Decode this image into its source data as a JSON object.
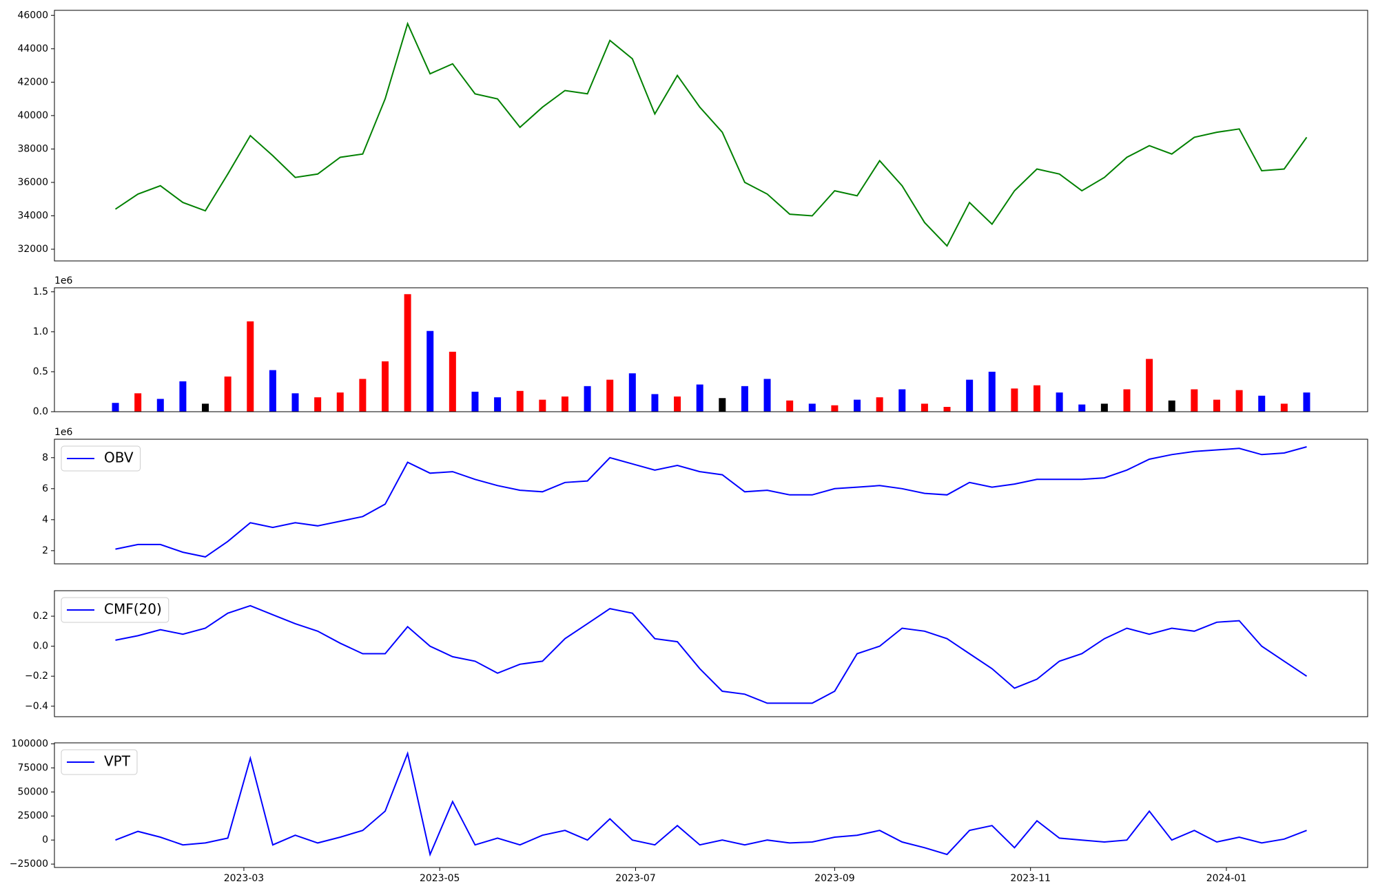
{
  "chart_data": [
    {
      "type": "line",
      "x": [
        "2023-01-20",
        "2023-01-27",
        "2023-02-03",
        "2023-02-10",
        "2023-02-17",
        "2023-02-24",
        "2023-03-03",
        "2023-03-10",
        "2023-03-17",
        "2023-03-24",
        "2023-03-31",
        "2023-04-07",
        "2023-04-14",
        "2023-04-21",
        "2023-04-28",
        "2023-05-05",
        "2023-05-12",
        "2023-05-19",
        "2023-05-26",
        "2023-06-02",
        "2023-06-09",
        "2023-06-16",
        "2023-06-23",
        "2023-06-30",
        "2023-07-07",
        "2023-07-14",
        "2023-07-21",
        "2023-07-28",
        "2023-08-04",
        "2023-08-11",
        "2023-08-18",
        "2023-08-25",
        "2023-09-01",
        "2023-09-08",
        "2023-09-15",
        "2023-09-22",
        "2023-09-29",
        "2023-10-06",
        "2023-10-13",
        "2023-10-20",
        "2023-10-27",
        "2023-11-03",
        "2023-11-10",
        "2023-11-17",
        "2023-11-24",
        "2023-12-01",
        "2023-12-08",
        "2023-12-15",
        "2023-12-22",
        "2023-12-29",
        "2024-01-05",
        "2024-01-12",
        "2024-01-19",
        "2024-01-26"
      ],
      "series": [
        {
          "color": "#008000",
          "values": [
            34400,
            35300,
            35800,
            34800,
            34300,
            36500,
            38800,
            37600,
            36300,
            36500,
            37500,
            37700,
            41000,
            45500,
            42500,
            43100,
            41300,
            41000,
            39300,
            40500,
            41500,
            41300,
            44500,
            43400,
            40100,
            42400,
            40500,
            39000,
            36000,
            35300,
            34100,
            34000,
            35500,
            35200,
            37300,
            35800,
            33600,
            32200,
            34800,
            33500,
            35500,
            36800,
            36500,
            35500,
            36300,
            37500,
            38200,
            37700,
            38700,
            39000,
            39200,
            36700,
            36800,
            38700
          ]
        }
      ],
      "xlim": [
        "2023-01-01",
        "2024-02-14"
      ],
      "ylim": [
        31300,
        46300
      ],
      "yticks": [
        32000,
        34000,
        36000,
        38000,
        40000,
        42000,
        44000,
        46000
      ]
    },
    {
      "type": "bar",
      "x": [
        "2023-01-20",
        "2023-01-27",
        "2023-02-03",
        "2023-02-10",
        "2023-02-17",
        "2023-02-24",
        "2023-03-03",
        "2023-03-10",
        "2023-03-17",
        "2023-03-24",
        "2023-03-31",
        "2023-04-07",
        "2023-04-14",
        "2023-04-21",
        "2023-04-28",
        "2023-05-05",
        "2023-05-12",
        "2023-05-19",
        "2023-05-26",
        "2023-06-02",
        "2023-06-09",
        "2023-06-16",
        "2023-06-23",
        "2023-06-30",
        "2023-07-07",
        "2023-07-14",
        "2023-07-21",
        "2023-07-28",
        "2023-08-04",
        "2023-08-11",
        "2023-08-18",
        "2023-08-25",
        "2023-09-01",
        "2023-09-08",
        "2023-09-15",
        "2023-09-22",
        "2023-09-29",
        "2023-10-06",
        "2023-10-13",
        "2023-10-20",
        "2023-10-27",
        "2023-11-03",
        "2023-11-10",
        "2023-11-17",
        "2023-11-24",
        "2023-12-01",
        "2023-12-08",
        "2023-12-15",
        "2023-12-22",
        "2023-12-29",
        "2024-01-05",
        "2024-01-12",
        "2024-01-19",
        "2024-01-26"
      ],
      "values": [
        110000,
        230000,
        160000,
        380000,
        100000,
        440000,
        1130000,
        520000,
        230000,
        180000,
        240000,
        410000,
        630000,
        1470000,
        1010000,
        750000,
        250000,
        180000,
        260000,
        150000,
        190000,
        320000,
        400000,
        480000,
        220000,
        190000,
        340000,
        170000,
        320000,
        410000,
        140000,
        100000,
        80000,
        150000,
        180000,
        280000,
        100000,
        60000,
        400000,
        500000,
        290000,
        330000,
        240000,
        90000,
        100000,
        280000,
        660000,
        140000,
        280000,
        150000,
        270000,
        200000,
        100000,
        240000
      ],
      "colors": [
        "#0000ff",
        "#ff0000",
        "#0000ff",
        "#0000ff",
        "#000000",
        "#ff0000",
        "#ff0000",
        "#0000ff",
        "#0000ff",
        "#ff0000",
        "#ff0000",
        "#ff0000",
        "#ff0000",
        "#ff0000",
        "#0000ff",
        "#ff0000",
        "#0000ff",
        "#0000ff",
        "#ff0000",
        "#ff0000",
        "#ff0000",
        "#0000ff",
        "#ff0000",
        "#0000ff",
        "#0000ff",
        "#ff0000",
        "#0000ff",
        "#000000",
        "#0000ff",
        "#0000ff",
        "#ff0000",
        "#0000ff",
        "#ff0000",
        "#0000ff",
        "#ff0000",
        "#0000ff",
        "#ff0000",
        "#ff0000",
        "#0000ff",
        "#0000ff",
        "#ff0000",
        "#ff0000",
        "#0000ff",
        "#0000ff",
        "#000000",
        "#ff0000",
        "#ff0000",
        "#000000",
        "#ff0000",
        "#ff0000",
        "#ff0000",
        "#0000ff",
        "#ff0000",
        "#0000ff"
      ],
      "xlim": [
        "2023-01-01",
        "2024-02-14"
      ],
      "ylim": [
        0,
        1550000
      ],
      "offset_text": "1e6",
      "yticks": [
        {
          "value": 0,
          "label": "0.0"
        },
        {
          "value": 500000,
          "label": "0.5"
        },
        {
          "value": 1000000,
          "label": "1.0"
        },
        {
          "value": 1500000,
          "label": "1.5"
        }
      ]
    },
    {
      "type": "line",
      "x": [
        "2023-01-20",
        "2023-01-27",
        "2023-02-03",
        "2023-02-10",
        "2023-02-17",
        "2023-02-24",
        "2023-03-03",
        "2023-03-10",
        "2023-03-17",
        "2023-03-24",
        "2023-03-31",
        "2023-04-07",
        "2023-04-14",
        "2023-04-21",
        "2023-04-28",
        "2023-05-05",
        "2023-05-12",
        "2023-05-19",
        "2023-05-26",
        "2023-06-02",
        "2023-06-09",
        "2023-06-16",
        "2023-06-23",
        "2023-06-30",
        "2023-07-07",
        "2023-07-14",
        "2023-07-21",
        "2023-07-28",
        "2023-08-04",
        "2023-08-11",
        "2023-08-18",
        "2023-08-25",
        "2023-09-01",
        "2023-09-08",
        "2023-09-15",
        "2023-09-22",
        "2023-09-29",
        "2023-10-06",
        "2023-10-13",
        "2023-10-20",
        "2023-10-27",
        "2023-11-03",
        "2023-11-10",
        "2023-11-17",
        "2023-11-24",
        "2023-12-01",
        "2023-12-08",
        "2023-12-15",
        "2023-12-22",
        "2023-12-29",
        "2024-01-05",
        "2024-01-12",
        "2024-01-19",
        "2024-01-26"
      ],
      "series": [
        {
          "name": "OBV",
          "color": "#0000ff",
          "values": [
            2100000,
            2400000,
            2400000,
            1900000,
            1600000,
            2600000,
            3800000,
            3500000,
            3800000,
            3600000,
            3900000,
            4200000,
            5000000,
            7700000,
            7000000,
            7100000,
            6600000,
            6200000,
            5900000,
            5800000,
            6400000,
            6500000,
            8000000,
            7600000,
            7200000,
            7500000,
            7100000,
            6900000,
            5800000,
            5900000,
            5600000,
            5600000,
            6000000,
            6100000,
            6200000,
            6000000,
            5700000,
            5600000,
            6400000,
            6100000,
            6300000,
            6600000,
            6600000,
            6600000,
            6700000,
            7200000,
            7900000,
            8200000,
            8400000,
            8500000,
            8600000,
            8200000,
            8300000,
            8700000
          ]
        }
      ],
      "xlim": [
        "2023-01-01",
        "2024-02-14"
      ],
      "ylim": [
        1150000,
        9190000
      ],
      "offset_text": "1e6",
      "legend": "upper left",
      "yticks": [
        {
          "value": 2000000,
          "label": "2"
        },
        {
          "value": 4000000,
          "label": "4"
        },
        {
          "value": 6000000,
          "label": "6"
        },
        {
          "value": 8000000,
          "label": "8"
        }
      ]
    },
    {
      "type": "line",
      "x": [
        "2023-01-20",
        "2023-01-27",
        "2023-02-03",
        "2023-02-10",
        "2023-02-17",
        "2023-02-24",
        "2023-03-03",
        "2023-03-10",
        "2023-03-17",
        "2023-03-24",
        "2023-03-31",
        "2023-04-07",
        "2023-04-14",
        "2023-04-21",
        "2023-04-28",
        "2023-05-05",
        "2023-05-12",
        "2023-05-19",
        "2023-05-26",
        "2023-06-02",
        "2023-06-09",
        "2023-06-16",
        "2023-06-23",
        "2023-06-30",
        "2023-07-07",
        "2023-07-14",
        "2023-07-21",
        "2023-07-28",
        "2023-08-04",
        "2023-08-11",
        "2023-08-18",
        "2023-08-25",
        "2023-09-01",
        "2023-09-08",
        "2023-09-15",
        "2023-09-22",
        "2023-09-29",
        "2023-10-06",
        "2023-10-13",
        "2023-10-20",
        "2023-10-27",
        "2023-11-03",
        "2023-11-10",
        "2023-11-17",
        "2023-11-24",
        "2023-12-01",
        "2023-12-08",
        "2023-12-15",
        "2023-12-22",
        "2023-12-29",
        "2024-01-05",
        "2024-01-12",
        "2024-01-19",
        "2024-01-26"
      ],
      "series": [
        {
          "name": "CMF(20)",
          "color": "#0000ff",
          "values": [
            0.04,
            0.07,
            0.11,
            0.08,
            0.12,
            0.22,
            0.27,
            0.21,
            0.15,
            0.1,
            0.02,
            -0.05,
            -0.05,
            0.13,
            0.0,
            -0.07,
            -0.1,
            -0.18,
            -0.12,
            -0.1,
            0.05,
            0.15,
            0.25,
            0.22,
            0.05,
            0.03,
            -0.15,
            -0.3,
            -0.32,
            -0.38,
            -0.38,
            -0.38,
            -0.3,
            -0.05,
            0.0,
            0.12,
            0.1,
            0.05,
            -0.05,
            -0.15,
            -0.28,
            -0.22,
            -0.1,
            -0.05,
            0.05,
            0.12,
            0.08,
            0.12,
            0.1,
            0.16,
            0.17,
            0.0,
            -0.1,
            -0.2
          ]
        }
      ],
      "xlim": [
        "2023-01-01",
        "2024-02-14"
      ],
      "ylim": [
        -0.47,
        0.37
      ],
      "legend": "upper left",
      "yticks": [
        {
          "value": -0.4,
          "label": "−0.4"
        },
        {
          "value": -0.2,
          "label": "−0.2"
        },
        {
          "value": 0,
          "label": "0.0"
        },
        0.2
      ]
    },
    {
      "type": "line",
      "x": [
        "2023-01-20",
        "2023-01-27",
        "2023-02-03",
        "2023-02-10",
        "2023-02-17",
        "2023-02-24",
        "2023-03-03",
        "2023-03-10",
        "2023-03-17",
        "2023-03-24",
        "2023-03-31",
        "2023-04-07",
        "2023-04-14",
        "2023-04-21",
        "2023-04-28",
        "2023-05-05",
        "2023-05-12",
        "2023-05-19",
        "2023-05-26",
        "2023-06-02",
        "2023-06-09",
        "2023-06-16",
        "2023-06-23",
        "2023-06-30",
        "2023-07-07",
        "2023-07-14",
        "2023-07-21",
        "2023-07-28",
        "2023-08-04",
        "2023-08-11",
        "2023-08-18",
        "2023-08-25",
        "2023-09-01",
        "2023-09-08",
        "2023-09-15",
        "2023-09-22",
        "2023-09-29",
        "2023-10-06",
        "2023-10-13",
        "2023-10-20",
        "2023-10-27",
        "2023-11-03",
        "2023-11-10",
        "2023-11-17",
        "2023-11-24",
        "2023-12-01",
        "2023-12-08",
        "2023-12-15",
        "2023-12-22",
        "2023-12-29",
        "2024-01-05",
        "2024-01-12",
        "2024-01-19",
        "2024-01-26"
      ],
      "series": [
        {
          "name": "VPT",
          "color": "#0000ff",
          "values": [
            0,
            9000,
            3000,
            -5000,
            -3000,
            2000,
            85000,
            -5000,
            5000,
            -3000,
            3000,
            10000,
            30000,
            90000,
            -15000,
            40000,
            -5000,
            2000,
            -5000,
            5000,
            10000,
            0,
            22000,
            0,
            -5000,
            15000,
            -5000,
            0,
            -5000,
            0,
            -3000,
            -2000,
            3000,
            5000,
            10000,
            -2000,
            -8000,
            -15000,
            10000,
            15000,
            -8000,
            20000,
            2000,
            0,
            -2000,
            0,
            30000,
            0,
            10000,
            -2000,
            3000,
            -3000,
            1000,
            10000
          ]
        }
      ],
      "xlim": [
        "2023-01-01",
        "2024-02-14"
      ],
      "ylim": [
        -28500,
        101000
      ],
      "legend": "upper left",
      "yticks": [
        {
          "value": -25000,
          "label": "−25000"
        },
        0,
        25000,
        50000,
        75000,
        100000
      ],
      "xticks": [
        {
          "value": "2023-03-01",
          "label": "2023-03"
        },
        {
          "value": "2023-05-01",
          "label": "2023-05"
        },
        {
          "value": "2023-07-01",
          "label": "2023-07"
        },
        {
          "value": "2023-09-01",
          "label": "2023-09"
        },
        {
          "value": "2023-11-01",
          "label": "2023-11"
        },
        {
          "value": "2024-01-01",
          "label": "2024-01"
        }
      ]
    }
  ]
}
